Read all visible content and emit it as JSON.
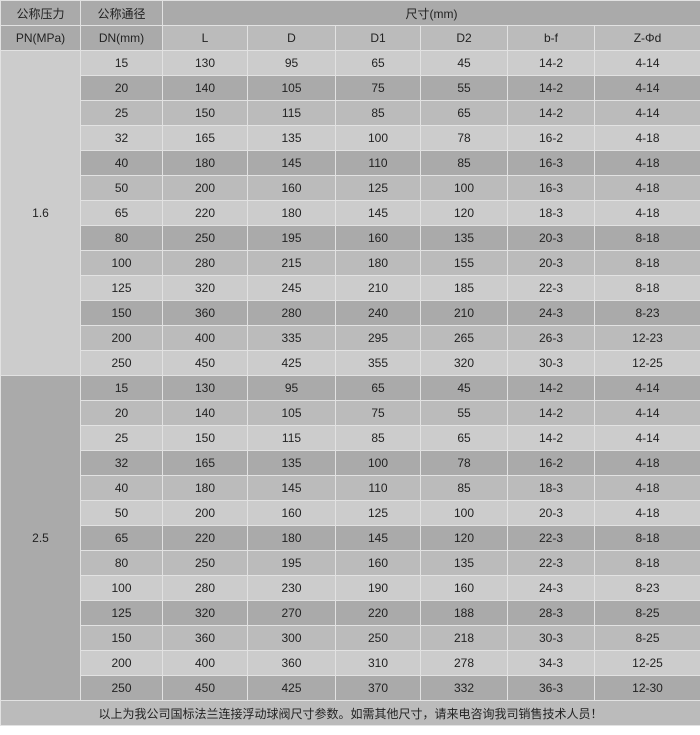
{
  "header": {
    "pn_label": [
      "公称压力",
      "PN(MPa)"
    ],
    "dn_label": [
      "公称通径",
      "DN(mm)"
    ],
    "dims_label": "尺寸(mm)",
    "columns": [
      "L",
      "D",
      "D1",
      "D2",
      "b-f",
      "Z-Φd"
    ]
  },
  "colors": {
    "light": "#cccccc",
    "dark": "#aaaaaa",
    "mid": "#bbbbbb",
    "border": "#e2e2e2"
  },
  "groups": [
    {
      "pn": "1.6",
      "rows": [
        [
          "15",
          "130",
          "95",
          "65",
          "45",
          "14-2",
          "4-14"
        ],
        [
          "20",
          "140",
          "105",
          "75",
          "55",
          "14-2",
          "4-14"
        ],
        [
          "25",
          "150",
          "115",
          "85",
          "65",
          "14-2",
          "4-14"
        ],
        [
          "32",
          "165",
          "135",
          "100",
          "78",
          "16-2",
          "4-18"
        ],
        [
          "40",
          "180",
          "145",
          "110",
          "85",
          "16-3",
          "4-18"
        ],
        [
          "50",
          "200",
          "160",
          "125",
          "100",
          "16-3",
          "4-18"
        ],
        [
          "65",
          "220",
          "180",
          "145",
          "120",
          "18-3",
          "4-18"
        ],
        [
          "80",
          "250",
          "195",
          "160",
          "135",
          "20-3",
          "8-18"
        ],
        [
          "100",
          "280",
          "215",
          "180",
          "155",
          "20-3",
          "8-18"
        ],
        [
          "125",
          "320",
          "245",
          "210",
          "185",
          "22-3",
          "8-18"
        ],
        [
          "150",
          "360",
          "280",
          "240",
          "210",
          "24-3",
          "8-23"
        ],
        [
          "200",
          "400",
          "335",
          "295",
          "265",
          "26-3",
          "12-23"
        ],
        [
          "250",
          "450",
          "425",
          "355",
          "320",
          "30-3",
          "12-25"
        ]
      ]
    },
    {
      "pn": "2.5",
      "rows": [
        [
          "15",
          "130",
          "95",
          "65",
          "45",
          "14-2",
          "4-14"
        ],
        [
          "20",
          "140",
          "105",
          "75",
          "55",
          "14-2",
          "4-14"
        ],
        [
          "25",
          "150",
          "115",
          "85",
          "65",
          "14-2",
          "4-14"
        ],
        [
          "32",
          "165",
          "135",
          "100",
          "78",
          "16-2",
          "4-18"
        ],
        [
          "40",
          "180",
          "145",
          "110",
          "85",
          "18-3",
          "4-18"
        ],
        [
          "50",
          "200",
          "160",
          "125",
          "100",
          "20-3",
          "4-18"
        ],
        [
          "65",
          "220",
          "180",
          "145",
          "120",
          "22-3",
          "8-18"
        ],
        [
          "80",
          "250",
          "195",
          "160",
          "135",
          "22-3",
          "8-18"
        ],
        [
          "100",
          "280",
          "230",
          "190",
          "160",
          "24-3",
          "8-23"
        ],
        [
          "125",
          "320",
          "270",
          "220",
          "188",
          "28-3",
          "8-25"
        ],
        [
          "150",
          "360",
          "300",
          "250",
          "218",
          "30-3",
          "8-25"
        ],
        [
          "200",
          "400",
          "360",
          "310",
          "278",
          "34-3",
          "12-25"
        ],
        [
          "250",
          "450",
          "425",
          "370",
          "332",
          "36-3",
          "12-30"
        ]
      ]
    }
  ],
  "footer": "以上为我公司国标法兰连接浮动球阀尺寸参数。如需其他尺寸，请来电咨询我司销售技术人员！"
}
